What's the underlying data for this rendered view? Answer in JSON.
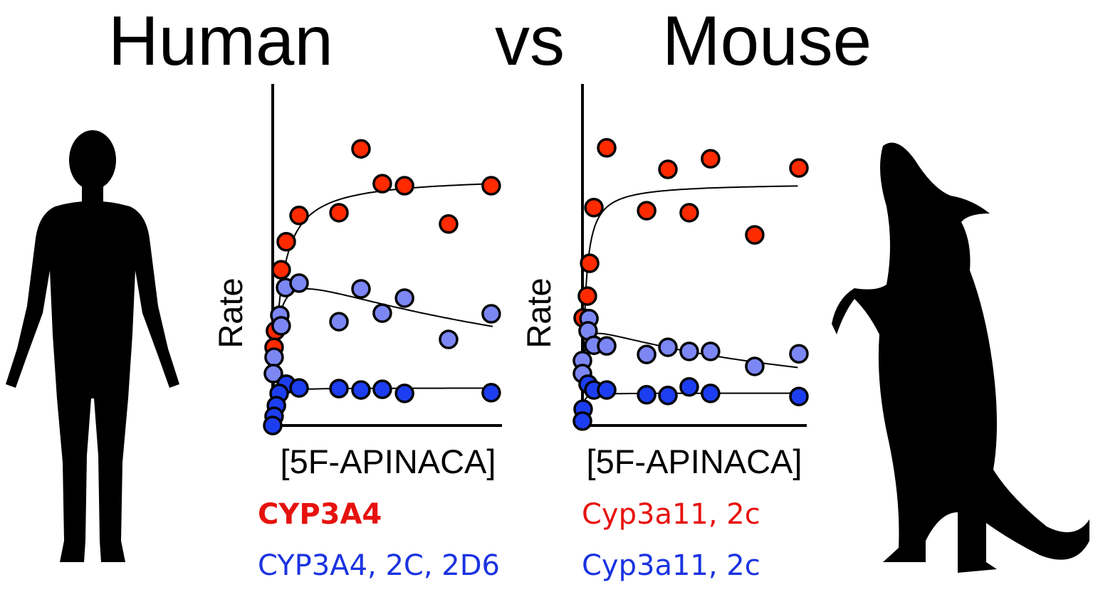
{
  "title": {
    "left": "Human",
    "middle": "vs",
    "right": "Mouse"
  },
  "colors": {
    "red": "#ff2a00",
    "light_blue": "#7c87f4",
    "blue": "#1d3ef0",
    "legend_red": "#e6120e",
    "legend_blue": "#1a33e0"
  },
  "icons": {
    "left": "human-silhouette",
    "right": "mouse-silhouette"
  },
  "legend": {
    "human": {
      "red": "CYP3A4",
      "blue": "CYP3A4, 2C, 2D6"
    },
    "mouse": {
      "red": "Cyp3a11, 2c",
      "blue": "Cyp3a11, 2c"
    }
  },
  "chart_data": [
    {
      "type": "scatter",
      "panel": "Human",
      "xlabel": "[5F-APINACA]",
      "ylabel": "Rate",
      "xlim": [
        0,
        100
      ],
      "ylim": [
        0,
        100
      ],
      "ticks": false,
      "grid": false,
      "series": [
        {
          "color": "#ff2a00",
          "fit": {
            "model": "michaelis-menten",
            "vmax": 73,
            "km": 3
          },
          "points": [
            [
              38.5,
              81
            ],
            [
              47.8,
              70.8
            ],
            [
              57.5,
              70.2
            ],
            [
              95.3,
              70.2
            ],
            [
              11.5,
              61.5
            ],
            [
              28.9,
              62.3
            ],
            [
              76.7,
              59
            ],
            [
              5.9,
              53.8
            ],
            [
              3.7,
              45.6
            ],
            [
              1.2,
              27.7
            ],
            [
              0.6,
              22.9
            ]
          ]
        },
        {
          "color": "#7c87f4",
          "fit": {
            "model": "substrate-inhibition",
            "vmax": 48,
            "km": 1.5,
            "ki": 150
          },
          "points": [
            [
              5.6,
              40.4
            ],
            [
              11.5,
              41.7
            ],
            [
              38.5,
              40
            ],
            [
              57.5,
              37.3
            ],
            [
              95.3,
              32.7
            ],
            [
              47.8,
              32.9
            ],
            [
              28.9,
              30.4
            ],
            [
              76.7,
              25.2
            ],
            [
              3.1,
              32.3
            ],
            [
              3.7,
              29.2
            ],
            [
              0.6,
              20
            ],
            [
              0.3,
              15.2
            ]
          ]
        },
        {
          "color": "#1d3ef0",
          "fit": {
            "model": "michaelis-menten",
            "vmax": 11,
            "km": 0.5
          },
          "points": [
            [
              5.9,
              12.1
            ],
            [
              11.5,
              11
            ],
            [
              28.9,
              10.8
            ],
            [
              38.5,
              10.4
            ],
            [
              47.8,
              10.6
            ],
            [
              57.5,
              9.4
            ],
            [
              95.3,
              9.6
            ],
            [
              2.8,
              9.4
            ],
            [
              1.6,
              5.8
            ],
            [
              0.6,
              2.7
            ],
            [
              0,
              0
            ]
          ]
        }
      ]
    },
    {
      "type": "scatter",
      "panel": "Mouse",
      "xlabel": "[5F-APINACA]",
      "ylabel": "Rate",
      "xlim": [
        0,
        100
      ],
      "ylim": [
        0,
        100
      ],
      "ticks": false,
      "grid": false,
      "series": [
        {
          "color": "#ff2a00",
          "fit": {
            "model": "michaelis-menten",
            "vmax": 71,
            "km": 1.2
          },
          "points": [
            [
              10.8,
              81.3
            ],
            [
              38.1,
              75
            ],
            [
              57.1,
              78.1
            ],
            [
              96.5,
              75.4
            ],
            [
              5.1,
              63.8
            ],
            [
              28.6,
              62.9
            ],
            [
              47.6,
              62.3
            ],
            [
              76.8,
              55.8
            ],
            [
              3.2,
              47.5
            ],
            [
              2.2,
              37.9
            ],
            [
              0.3,
              31.5
            ]
          ]
        },
        {
          "color": "#7c87f4",
          "fit": {
            "model": "substrate-inhibition",
            "vmax": 30,
            "km": 0.4,
            "ki": 126
          },
          "points": [
            [
              2.9,
              31.3
            ],
            [
              2.5,
              27.7
            ],
            [
              5.1,
              23.5
            ],
            [
              10.8,
              23.3
            ],
            [
              28.6,
              20.8
            ],
            [
              38.1,
              22.9
            ],
            [
              47.6,
              21.7
            ],
            [
              57.1,
              21.7
            ],
            [
              76.8,
              17.3
            ],
            [
              96.5,
              21
            ],
            [
              0,
              19
            ],
            [
              0,
              15.2
            ]
          ]
        },
        {
          "color": "#1d3ef0",
          "fit": {
            "model": "michaelis-menten",
            "vmax": 9.5,
            "km": 0.3
          },
          "points": [
            [
              2.5,
              12.1
            ],
            [
              5.1,
              10.4
            ],
            [
              10.8,
              10.4
            ],
            [
              28.6,
              9
            ],
            [
              38.1,
              8.8
            ],
            [
              47.6,
              11.3
            ],
            [
              57.1,
              9.4
            ],
            [
              96.5,
              8.5
            ],
            [
              0.3,
              4.8
            ],
            [
              0,
              1.3
            ]
          ]
        }
      ]
    }
  ]
}
